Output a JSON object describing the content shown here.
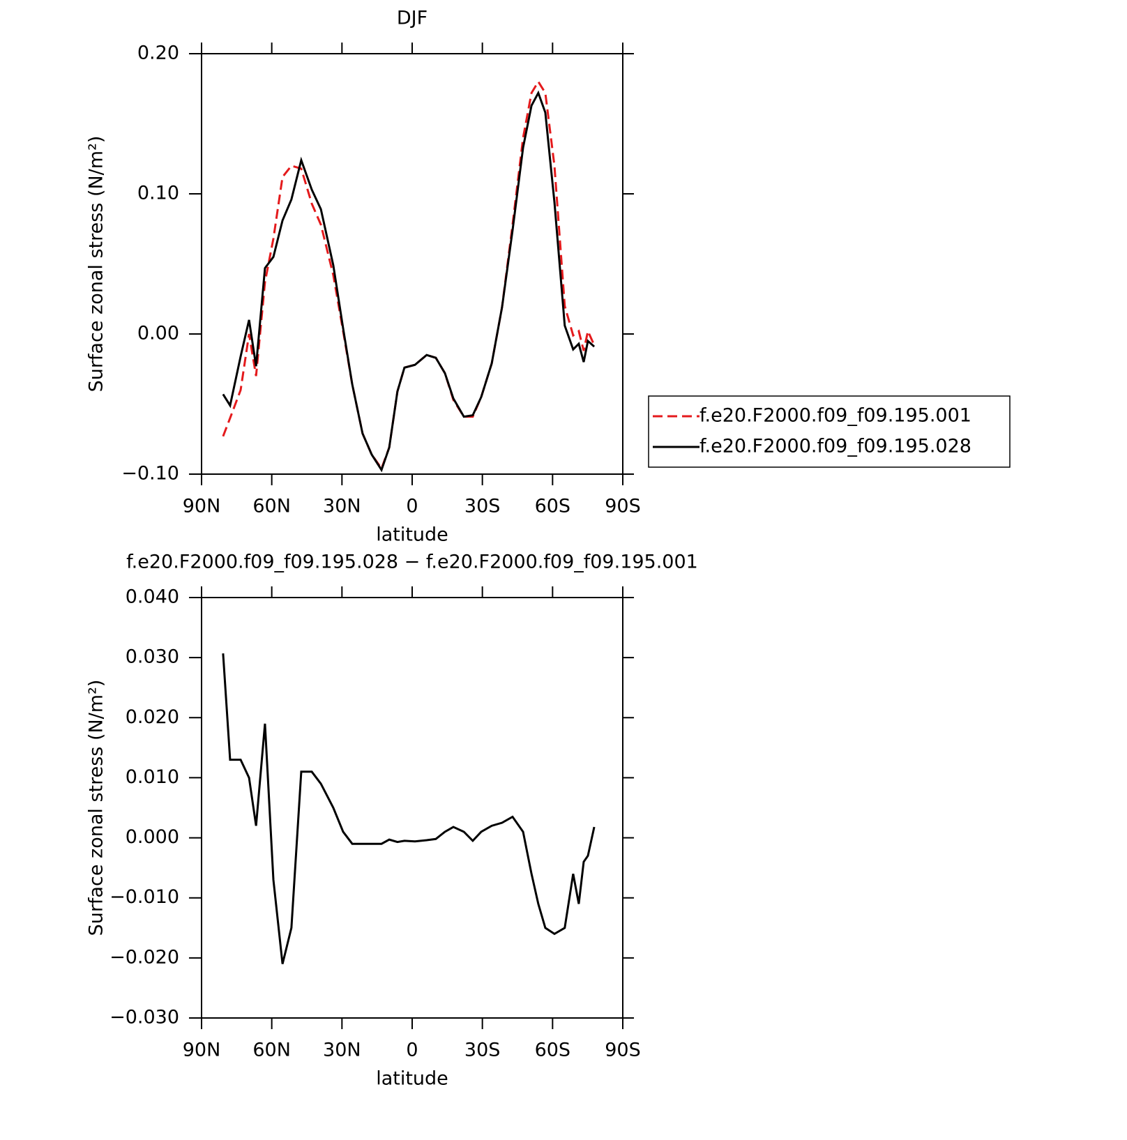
{
  "chart_data": [
    {
      "type": "line",
      "title": "DJF",
      "xlabel": "latitude",
      "ylabel": "Surface zonal stress (N/m²)",
      "x": [
        80.8,
        77.8,
        73.3,
        69.7,
        66.7,
        62.9,
        59.3,
        55.4,
        51.6,
        47.4,
        42.9,
        39.0,
        33.7,
        29.5,
        25.6,
        21.2,
        17.3,
        13.1,
        9.8,
        6.3,
        3.3,
        -1.2,
        -6.2,
        -10.1,
        -14.0,
        -17.6,
        -22.1,
        -25.9,
        -29.5,
        -34.0,
        -38.4,
        -42.9,
        -47.4,
        -51.0,
        -53.9,
        -56.9,
        -60.8,
        -65.2,
        -68.8,
        -71.2,
        -73.3,
        -75.1,
        -77.8
      ],
      "xlim": [
        90,
        -90
      ],
      "xticks": [
        {
          "value": 90,
          "label": "90N"
        },
        {
          "value": 60,
          "label": "60N"
        },
        {
          "value": 30,
          "label": "30N"
        },
        0,
        {
          "value": -30,
          "label": "30S"
        },
        {
          "value": -60,
          "label": "60S"
        },
        {
          "value": -90,
          "label": "90S"
        }
      ],
      "ylim": [
        -0.1,
        0.2
      ],
      "yticks": [
        {
          "value": -0.1,
          "label": "−0.10"
        },
        {
          "value": 0,
          "label": "0.00"
        },
        {
          "value": 0.1,
          "label": "0.10"
        },
        {
          "value": 0.2,
          "label": "0.20"
        }
      ],
      "legend": "right",
      "series": [
        {
          "name": "f.e20.F2000.f09_f09.195.001",
          "color": "#e41a1c",
          "dash": true,
          "values": [
            -0.073,
            -0.06,
            -0.04,
            0.0,
            -0.03,
            0.037,
            0.068,
            0.112,
            0.12,
            0.118,
            0.093,
            0.078,
            0.042,
            0.002,
            -0.036,
            -0.071,
            -0.086,
            -0.096,
            -0.081,
            -0.041,
            -0.024,
            -0.022,
            -0.015,
            -0.017,
            -0.028,
            -0.047,
            -0.059,
            -0.059,
            -0.045,
            -0.021,
            0.019,
            0.078,
            0.14,
            0.172,
            0.18,
            0.172,
            0.12,
            0.02,
            -0.001,
            0.002,
            -0.012,
            0.002,
            -0.008
          ]
        },
        {
          "name": "f.e20.F2000.f09_f09.195.028",
          "color": "#000000",
          "dash": false,
          "values": [
            -0.043,
            -0.051,
            -0.016,
            0.01,
            -0.023,
            0.047,
            0.055,
            0.081,
            0.096,
            0.124,
            0.103,
            0.089,
            0.049,
            0.004,
            -0.036,
            -0.071,
            -0.086,
            -0.097,
            -0.081,
            -0.041,
            -0.024,
            -0.022,
            -0.015,
            -0.017,
            -0.028,
            -0.046,
            -0.059,
            -0.058,
            -0.045,
            -0.021,
            0.019,
            0.074,
            0.133,
            0.163,
            0.172,
            0.158,
            0.094,
            0.006,
            -0.011,
            -0.007,
            -0.02,
            -0.005,
            -0.009
          ]
        }
      ]
    },
    {
      "type": "line",
      "title": "f.e20.F2000.f09_f09.195.028 − f.e20.F2000.f09_f09.195.001",
      "xlabel": "latitude",
      "ylabel": "Surface zonal stress (N/m²)",
      "x": [
        80.8,
        77.8,
        73.3,
        69.7,
        66.7,
        62.9,
        59.3,
        55.4,
        51.6,
        47.4,
        42.9,
        39.0,
        33.7,
        29.5,
        25.6,
        21.2,
        17.3,
        13.1,
        9.8,
        6.3,
        3.3,
        -1.2,
        -6.2,
        -10.1,
        -14.0,
        -17.6,
        -22.1,
        -25.9,
        -29.5,
        -34.0,
        -38.4,
        -42.9,
        -47.4,
        -51.0,
        -53.9,
        -56.9,
        -60.8,
        -65.2,
        -68.8,
        -71.2,
        -73.3,
        -75.1,
        -77.8
      ],
      "xlim": [
        90,
        -90
      ],
      "xticks": [
        {
          "value": 90,
          "label": "90N"
        },
        {
          "value": 60,
          "label": "60N"
        },
        {
          "value": 30,
          "label": "30N"
        },
        0,
        {
          "value": -30,
          "label": "30S"
        },
        {
          "value": -60,
          "label": "60S"
        },
        {
          "value": -90,
          "label": "90S"
        }
      ],
      "ylim": [
        -0.03,
        0.04
      ],
      "yticks": [
        {
          "value": -0.03,
          "label": "−0.030"
        },
        {
          "value": -0.02,
          "label": "−0.020"
        },
        {
          "value": -0.01,
          "label": "−0.010"
        },
        {
          "value": 0,
          "label": "0.000"
        },
        {
          "value": 0.01,
          "label": "0.010"
        },
        {
          "value": 0.02,
          "label": "0.020"
        },
        {
          "value": 0.03,
          "label": "0.030"
        },
        {
          "value": 0.04,
          "label": "0.040"
        }
      ],
      "series": [
        {
          "color": "#000000",
          "dash": false,
          "values": [
            0.0307,
            0.013,
            0.013,
            0.01,
            0.002,
            0.019,
            -0.007,
            -0.021,
            -0.015,
            0.011,
            0.011,
            0.009,
            0.005,
            0.001,
            -0.001,
            -0.001,
            -0.001,
            -0.001,
            -0.0003,
            -0.0007,
            -0.0005,
            -0.0006,
            -0.0004,
            -0.0002,
            0.001,
            0.0018,
            0.001,
            -0.0005,
            0.001,
            0.002,
            0.0025,
            0.0035,
            0.001,
            -0.006,
            -0.011,
            -0.015,
            -0.016,
            -0.015,
            -0.006,
            -0.011,
            -0.004,
            -0.003,
            0.0018
          ]
        }
      ]
    }
  ]
}
